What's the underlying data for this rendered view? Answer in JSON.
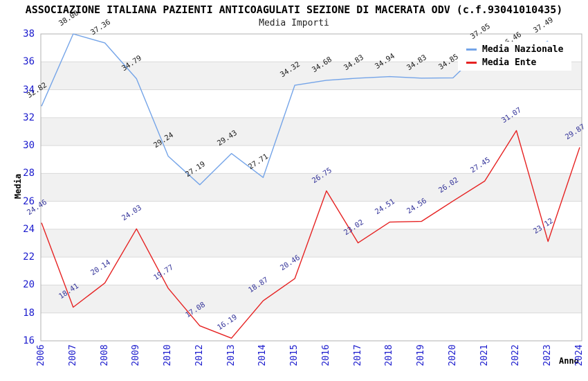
{
  "chart_data": {
    "type": "line",
    "title": "ASSOCIAZIONE ITALIANA PAZIENTI ANTICOAGULATI SEZIONE DI MACERATA ODV (c.f.93041010435)",
    "subtitle": "Media Importi",
    "xlabel": "Anno",
    "ylabel": "Media",
    "ylim": [
      16,
      38
    ],
    "y_ticks": [
      38,
      36,
      34,
      32,
      30,
      28,
      26,
      24,
      22,
      20,
      18,
      16
    ],
    "grid": "horizontal-bands",
    "legend_position": "top-right-inside",
    "categories": [
      "2006",
      "2007",
      "2008",
      "2009",
      "2010",
      "2012",
      "2013",
      "2014",
      "2015",
      "2016",
      "2017",
      "2018",
      "2019",
      "2020",
      "2021",
      "2022",
      "2023",
      "2024"
    ],
    "series": [
      {
        "name": "Media Nazionale",
        "color": "#74A4E8",
        "label_color": "#1a1a1a",
        "values": [
          32.82,
          38.0,
          37.36,
          34.79,
          29.24,
          27.19,
          29.43,
          27.71,
          34.32,
          34.68,
          34.83,
          34.94,
          34.83,
          34.85,
          37.05,
          36.46,
          37.49,
          null
        ]
      },
      {
        "name": "Media Ente",
        "color": "#E62222",
        "label_color": "#333399",
        "values": [
          24.46,
          18.41,
          20.14,
          24.03,
          19.77,
          17.08,
          16.19,
          18.87,
          20.46,
          26.75,
          23.02,
          24.51,
          24.56,
          26.02,
          27.45,
          31.07,
          23.12,
          29.87
        ]
      }
    ],
    "style": {
      "tick_label_color": "#1a1acd",
      "band_fill": "#f1f1f1",
      "gridline_color": "#d9d9d9",
      "plot_border_color": "#b0b0b0"
    }
  }
}
